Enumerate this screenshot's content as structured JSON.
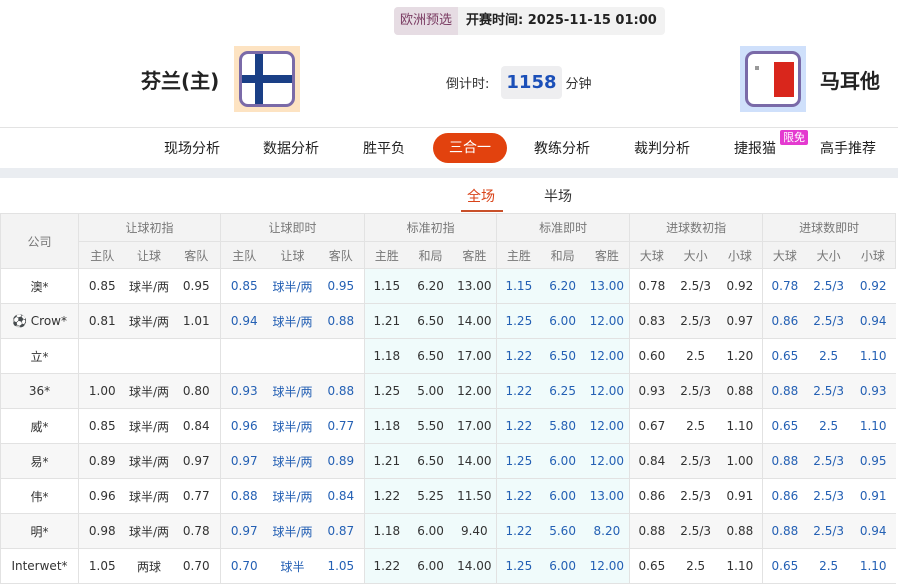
{
  "match": {
    "league": "欧洲预选",
    "kickoff_label": "开赛时间:",
    "kickoff": "2025-11-15 01:00",
    "home": {
      "name": "芬兰(主)",
      "flag": "finland-flag"
    },
    "away": {
      "name": "马耳他",
      "flag": "malta-flag"
    },
    "countdown_label": "倒计时:",
    "countdown_value": "1158",
    "countdown_unit": "分钟"
  },
  "nav": {
    "items": [
      "现场分析",
      "数据分析",
      "胜平负",
      "三合一",
      "教练分析",
      "裁判分析",
      "捷报猫",
      "高手推荐"
    ],
    "active": "三合一",
    "free_badge": "限免"
  },
  "subtabs": {
    "items": [
      "全场",
      "半场"
    ],
    "active": "全场"
  },
  "colors": {
    "accent": "#e2420e",
    "blue_value": "#2460b4",
    "cyan_bg": "#f0fbfb"
  },
  "table": {
    "company_header": "公司",
    "groups": [
      "让球初指",
      "让球即时",
      "标准初指",
      "标准即时",
      "进球数初指",
      "进球数即时"
    ],
    "subheaders": [
      [
        "主队",
        "让球",
        "客队"
      ],
      [
        "主队",
        "让球",
        "客队"
      ],
      [
        "主胜",
        "和局",
        "客胜"
      ],
      [
        "主胜",
        "和局",
        "客胜"
      ],
      [
        "大球",
        "大小",
        "小球"
      ],
      [
        "大球",
        "大小",
        "小球"
      ]
    ],
    "rows": [
      {
        "company": "澳*",
        "v": [
          "0.85",
          "球半/两",
          "0.95",
          "0.85",
          "球半/两",
          "0.95",
          "1.15",
          "6.20",
          "13.00",
          "1.15",
          "6.20",
          "13.00",
          "0.78",
          "2.5/3",
          "0.92",
          "0.78",
          "2.5/3",
          "0.92"
        ]
      },
      {
        "company": "Crow*",
        "icon": "soccer-ball",
        "v": [
          "0.81",
          "球半/两",
          "1.01",
          "0.94",
          "球半/两",
          "0.88",
          "1.21",
          "6.50",
          "14.00",
          "1.25",
          "6.00",
          "12.00",
          "0.83",
          "2.5/3",
          "0.97",
          "0.86",
          "2.5/3",
          "0.94"
        ]
      },
      {
        "company": "立*",
        "v": [
          "",
          "",
          "",
          "",
          "",
          "",
          "1.18",
          "6.50",
          "17.00",
          "1.22",
          "6.50",
          "12.00",
          "0.60",
          "2.5",
          "1.20",
          "0.65",
          "2.5",
          "1.10"
        ]
      },
      {
        "company": "36*",
        "v": [
          "1.00",
          "球半/两",
          "0.80",
          "0.93",
          "球半/两",
          "0.88",
          "1.25",
          "5.00",
          "12.00",
          "1.22",
          "6.25",
          "12.00",
          "0.93",
          "2.5/3",
          "0.88",
          "0.88",
          "2.5/3",
          "0.93"
        ]
      },
      {
        "company": "威*",
        "v": [
          "0.85",
          "球半/两",
          "0.84",
          "0.96",
          "球半/两",
          "0.77",
          "1.18",
          "5.50",
          "17.00",
          "1.22",
          "5.80",
          "12.00",
          "0.67",
          "2.5",
          "1.10",
          "0.65",
          "2.5",
          "1.10"
        ]
      },
      {
        "company": "易*",
        "v": [
          "0.89",
          "球半/两",
          "0.97",
          "0.97",
          "球半/两",
          "0.89",
          "1.21",
          "6.50",
          "14.00",
          "1.25",
          "6.00",
          "12.00",
          "0.84",
          "2.5/3",
          "1.00",
          "0.88",
          "2.5/3",
          "0.95"
        ]
      },
      {
        "company": "伟*",
        "v": [
          "0.96",
          "球半/两",
          "0.77",
          "0.88",
          "球半/两",
          "0.84",
          "1.22",
          "5.25",
          "11.50",
          "1.22",
          "6.00",
          "13.00",
          "0.86",
          "2.5/3",
          "0.91",
          "0.86",
          "2.5/3",
          "0.91"
        ]
      },
      {
        "company": "明*",
        "v": [
          "0.98",
          "球半/两",
          "0.78",
          "0.97",
          "球半/两",
          "0.87",
          "1.18",
          "6.00",
          "9.40",
          "1.22",
          "5.60",
          "8.20",
          "0.88",
          "2.5/3",
          "0.88",
          "0.88",
          "2.5/3",
          "0.94"
        ]
      },
      {
        "company": "Interwet*",
        "v": [
          "1.05",
          "两球",
          "0.70",
          "0.70",
          "球半",
          "1.05",
          "1.22",
          "6.00",
          "14.00",
          "1.25",
          "6.00",
          "12.00",
          "0.65",
          "2.5",
          "1.10",
          "0.65",
          "2.5",
          "1.10"
        ]
      }
    ]
  }
}
